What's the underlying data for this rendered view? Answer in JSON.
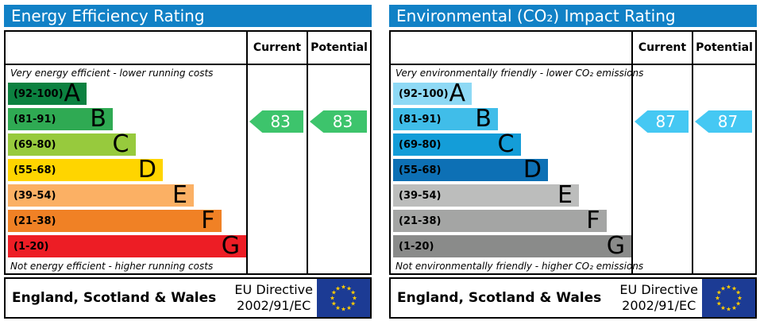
{
  "header_bg": "#1181c6",
  "eu_flag": {
    "bg": "#1c3b94",
    "star_color": "#ffcc00"
  },
  "footer": {
    "region": "England, Scotland & Wales",
    "directive_line1": "EU Directive",
    "directive_line2": "2002/91/EC"
  },
  "panels": [
    {
      "title": "Energy Efficiency Rating",
      "current_label": "Current",
      "potential_label": "Potential",
      "top_note": "Very energy efficient - lower running costs",
      "bottom_note": "Not energy efficient - higher running costs",
      "bands": [
        {
          "range": "(92-100)",
          "letter": "A",
          "color": "#0c8140",
          "width": "33%"
        },
        {
          "range": "(81-91)",
          "letter": "B",
          "color": "#2faa53",
          "width": "44%"
        },
        {
          "range": "(69-80)",
          "letter": "C",
          "color": "#97ca3d",
          "width": "53.5%"
        },
        {
          "range": "(55-68)",
          "letter": "D",
          "color": "#ffd500",
          "width": "65%"
        },
        {
          "range": "(39-54)",
          "letter": "E",
          "color": "#fbb064",
          "width": "78%"
        },
        {
          "range": "(21-38)",
          "letter": "F",
          "color": "#f08125",
          "width": "89.5%"
        },
        {
          "range": "(1-20)",
          "letter": "G",
          "color": "#ed1d25",
          "width": "100%"
        }
      ],
      "current": {
        "value": "83",
        "arrow_color": "#3dc46c"
      },
      "potential": {
        "value": "83",
        "arrow_color": "#3dc46c"
      }
    },
    {
      "title": "Environmental (CO₂) Impact Rating",
      "current_label": "Current",
      "potential_label": "Potential",
      "top_note": "Very environmentally friendly - lower CO₂ emissions",
      "bottom_note": "Not environmentally friendly - higher CO₂ emissions",
      "bands": [
        {
          "range": "(92-100)",
          "letter": "A",
          "color": "#8ed9f5",
          "width": "33%"
        },
        {
          "range": "(81-91)",
          "letter": "B",
          "color": "#40bde9",
          "width": "44%"
        },
        {
          "range": "(69-80)",
          "letter": "C",
          "color": "#149dd8",
          "width": "53.5%"
        },
        {
          "range": "(55-68)",
          "letter": "D",
          "color": "#0d70b5",
          "width": "65%"
        },
        {
          "range": "(39-54)",
          "letter": "E",
          "color": "#bcbdbc",
          "width": "78%"
        },
        {
          "range": "(21-38)",
          "letter": "F",
          "color": "#a4a5a4",
          "width": "89.5%"
        },
        {
          "range": "(1-20)",
          "letter": "G",
          "color": "#8a8b8a",
          "width": "100%"
        }
      ],
      "current": {
        "value": "87",
        "arrow_color": "#45c8f3"
      },
      "potential": {
        "value": "87",
        "arrow_color": "#45c8f3"
      }
    }
  ],
  "chart_data": [
    {
      "type": "bar",
      "title": "Energy Efficiency Rating",
      "categories": [
        "A (92-100)",
        "B (81-91)",
        "C (69-80)",
        "D (55-68)",
        "E (39-54)",
        "F (21-38)",
        "G (1-20)"
      ],
      "range": [
        1,
        100
      ],
      "scale_note_top": "Very energy efficient - lower running costs",
      "scale_note_bottom": "Not energy efficient - higher running costs",
      "series": [
        {
          "name": "Current",
          "values": [
            83
          ],
          "band": "B"
        },
        {
          "name": "Potential",
          "values": [
            83
          ],
          "band": "B"
        }
      ]
    },
    {
      "type": "bar",
      "title": "Environmental (CO₂) Impact Rating",
      "categories": [
        "A (92-100)",
        "B (81-91)",
        "C (69-80)",
        "D (55-68)",
        "E (39-54)",
        "F (21-38)",
        "G (1-20)"
      ],
      "range": [
        1,
        100
      ],
      "scale_note_top": "Very environmentally friendly - lower CO₂ emissions",
      "scale_note_bottom": "Not environmentally friendly - higher CO₂ emissions",
      "series": [
        {
          "name": "Current",
          "values": [
            87
          ],
          "band": "B"
        },
        {
          "name": "Potential",
          "values": [
            87
          ],
          "band": "B"
        }
      ]
    }
  ]
}
